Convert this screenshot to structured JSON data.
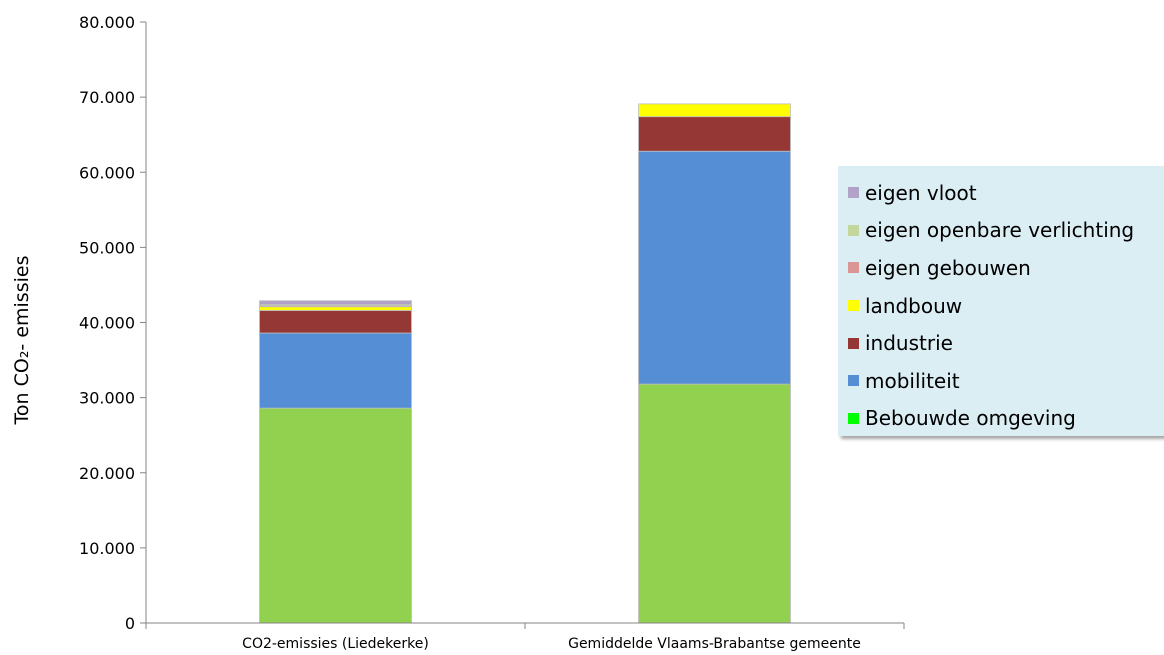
{
  "chart_data": {
    "type": "bar",
    "stacked": true,
    "categories": [
      "CO2-emissies (Liedekerke)",
      "Gemiddelde Vlaams-Brabantse gemeente"
    ],
    "ylabel": "Ton CO₂- emissies",
    "ylim": [
      0,
      80000
    ],
    "yticks": [
      "0",
      "10.000",
      "20.000",
      "30.000",
      "40.000",
      "50.000",
      "60.000",
      "70.000",
      "80.000"
    ],
    "grid": false,
    "legend_position": "right",
    "series": [
      {
        "name": "Bebouwde omgeving",
        "color": "#92d050",
        "values": [
          28600,
          31800
        ]
      },
      {
        "name": "mobiliteit",
        "color": "#558ed5",
        "values": [
          10000,
          31000
        ]
      },
      {
        "name": "industrie",
        "color": "#953735",
        "values": [
          3000,
          4600
        ]
      },
      {
        "name": "landbouw",
        "color": "#ffff00",
        "values": [
          500,
          1700
        ]
      },
      {
        "name": "eigen gebouwen",
        "color": "#d99694",
        "values": [
          150,
          0
        ]
      },
      {
        "name": "eigen openbare verlichting",
        "color": "#c3d69b",
        "values": [
          150,
          0
        ]
      },
      {
        "name": "eigen vloot",
        "color": "#b3a2c7",
        "values": [
          500,
          0
        ]
      }
    ],
    "legend_swatch_colors": [
      "#b3a2c7",
      "#c3d69b",
      "#d99694",
      "#ffff00",
      "#953735",
      "#558ed5",
      "#00ff00"
    ]
  }
}
